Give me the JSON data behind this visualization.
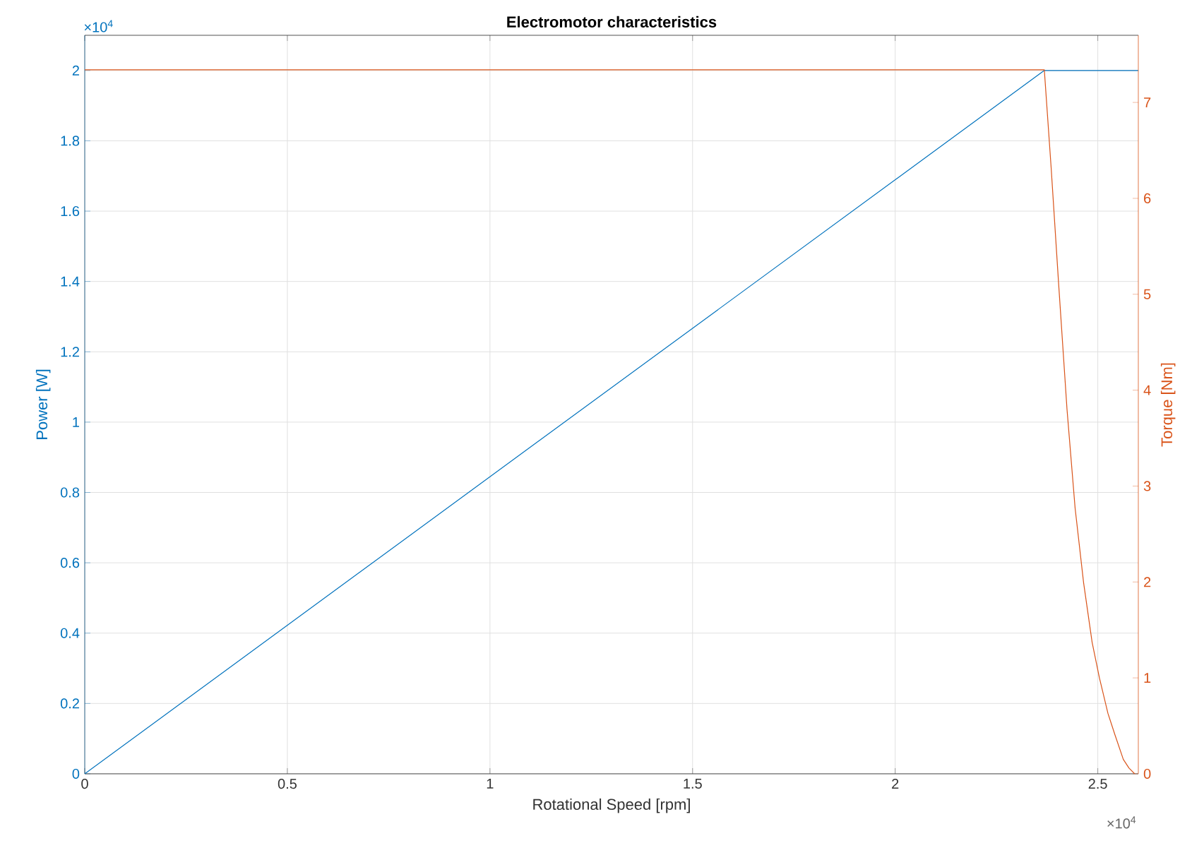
{
  "chart_data": {
    "type": "line",
    "title": "Electromotor characteristics",
    "xlabel": "Rotational Speed [rpm]",
    "ylabel": "Power [W]",
    "y2label": "Torque [Nm]",
    "xlim": [
      0,
      2.6
    ],
    "ylim": [
      0,
      2.1
    ],
    "y2lim": [
      0,
      7.7
    ],
    "xticks": [
      0,
      0.5,
      1,
      1.5,
      2,
      2.5
    ],
    "yticks": [
      0,
      0.2,
      0.4,
      0.6,
      0.8,
      1,
      1.2,
      1.4,
      1.6,
      1.8,
      2
    ],
    "y2ticks": [
      0,
      1,
      2,
      3,
      4,
      5,
      6,
      7
    ],
    "grid": true,
    "marker": "none",
    "line_style": "solid",
    "annotations": [
      "×10$^{4}$",
      "×10$^{4}$"
    ],
    "series": [
      {
        "color": "#0072bd",
        "x": [
          0,
          2.368,
          2.6
        ],
        "values": [
          0,
          2,
          2
        ]
      },
      {
        "color": "#d95319",
        "axis": "y2",
        "x": [
          0,
          2.368,
          2.385,
          2.403,
          2.424,
          2.444,
          2.465,
          2.486,
          2.504,
          2.525,
          2.542,
          2.563,
          2.577,
          2.591
        ],
        "values": [
          7.34,
          7.34,
          6.31,
          5.13,
          3.8,
          2.77,
          1.99,
          1.37,
          1.0,
          0.63,
          0.41,
          0.15,
          0.06,
          0
        ]
      }
    ]
  }
}
